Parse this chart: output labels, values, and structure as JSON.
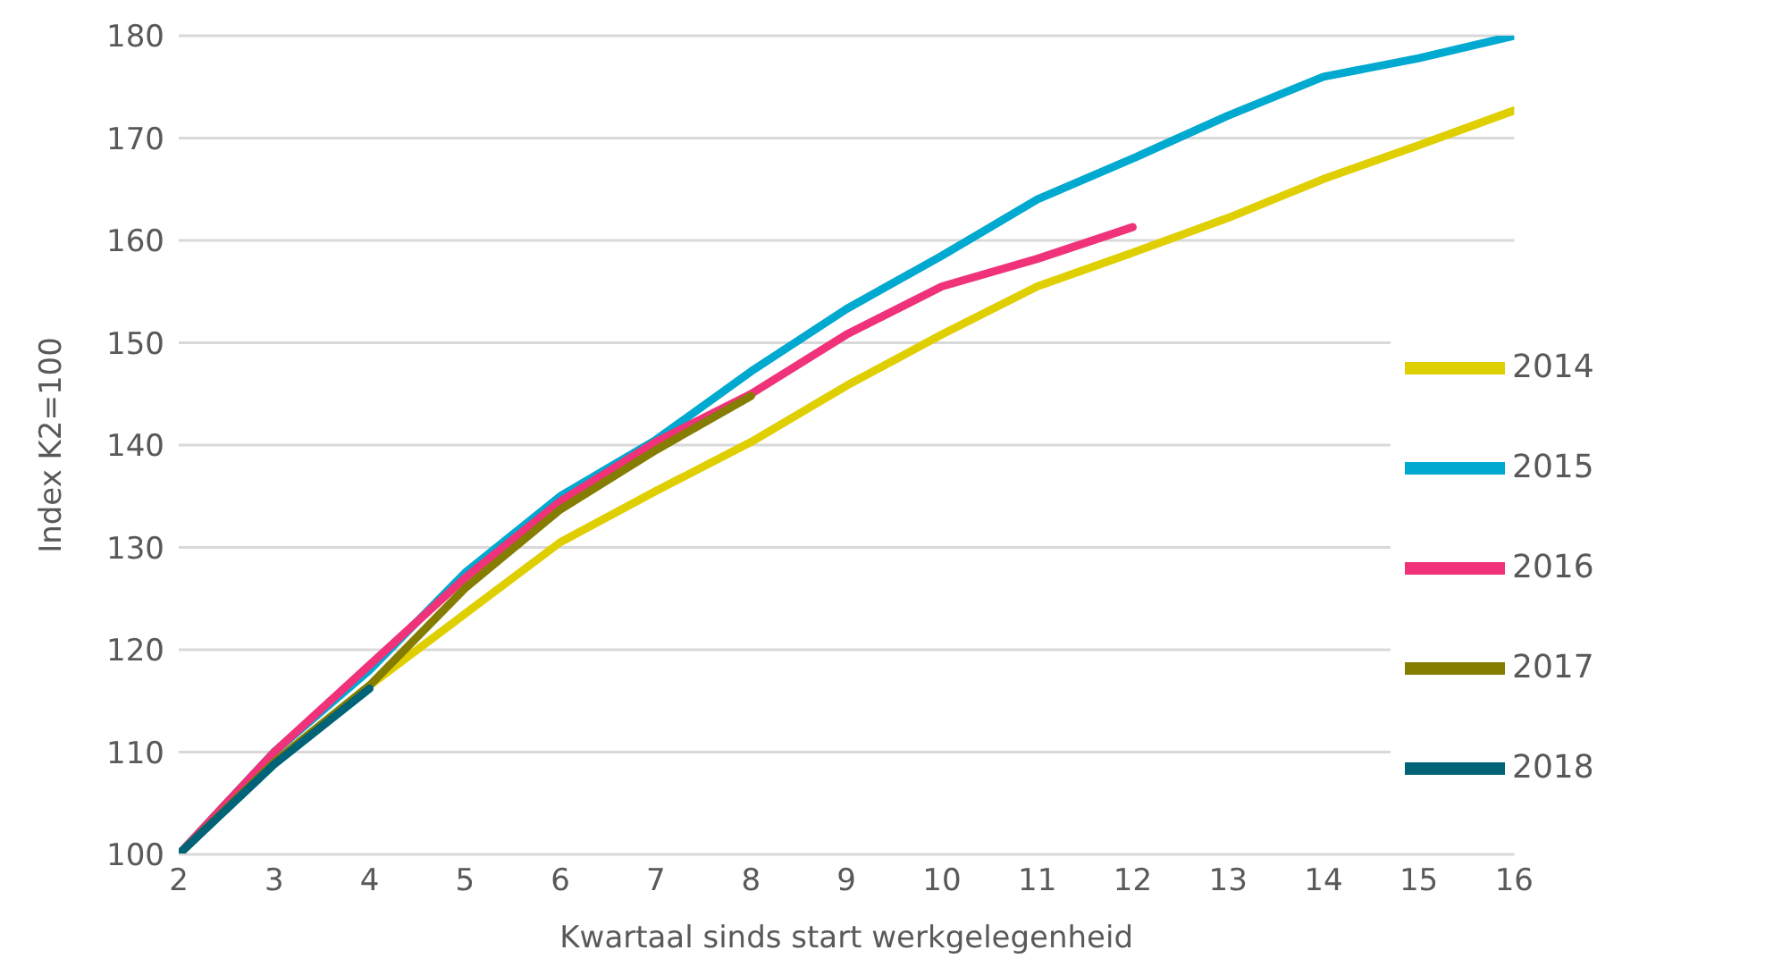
{
  "chart_data": {
    "type": "line",
    "xlabel": "Kwartaal sinds start werkgelegenheid",
    "ylabel": "Index K2=100",
    "x": [
      2,
      3,
      4,
      5,
      6,
      7,
      8,
      9,
      10,
      11,
      12,
      13,
      14,
      15,
      16
    ],
    "xlim": [
      2,
      16
    ],
    "xticks": [
      2,
      3,
      4,
      5,
      6,
      7,
      8,
      9,
      10,
      11,
      12,
      13,
      14,
      15,
      16
    ],
    "ylim": [
      100,
      180
    ],
    "yticks": [
      100,
      110,
      120,
      130,
      140,
      150,
      160,
      170,
      180
    ],
    "grid": "y",
    "legend": "right",
    "marker": "none",
    "line_style": "solid",
    "series": [
      {
        "name": "2014",
        "color": "#e0cf00",
        "values": [
          100,
          109,
          116.5,
          123.5,
          130.5,
          135.5,
          140.3,
          145.8,
          150.8,
          155.5,
          158.8,
          162.2,
          166,
          169.3,
          172.7
        ]
      },
      {
        "name": "2015",
        "color": "#00a9cf",
        "values": [
          100,
          110,
          118,
          127.5,
          135,
          140.5,
          147.2,
          153.3,
          158.5,
          164,
          168,
          172.2,
          176,
          177.8,
          180
        ]
      },
      {
        "name": "2016",
        "color": "#f0327a",
        "values": [
          100,
          110,
          118.5,
          127,
          134.5,
          140.3,
          145,
          150.8,
          155.5,
          158.2,
          161.3,
          null,
          null,
          null,
          null
        ]
      },
      {
        "name": "2017",
        "color": "#857d00",
        "values": [
          100,
          109,
          116.5,
          126,
          133.7,
          139.5,
          144.8,
          null,
          null,
          null,
          null,
          null,
          null,
          null,
          null
        ]
      },
      {
        "name": "2018",
        "color": "#006377",
        "values": [
          100,
          108.8,
          116.2,
          null,
          null,
          null,
          null,
          null,
          null,
          null,
          null,
          null,
          null,
          null,
          null
        ]
      }
    ]
  }
}
